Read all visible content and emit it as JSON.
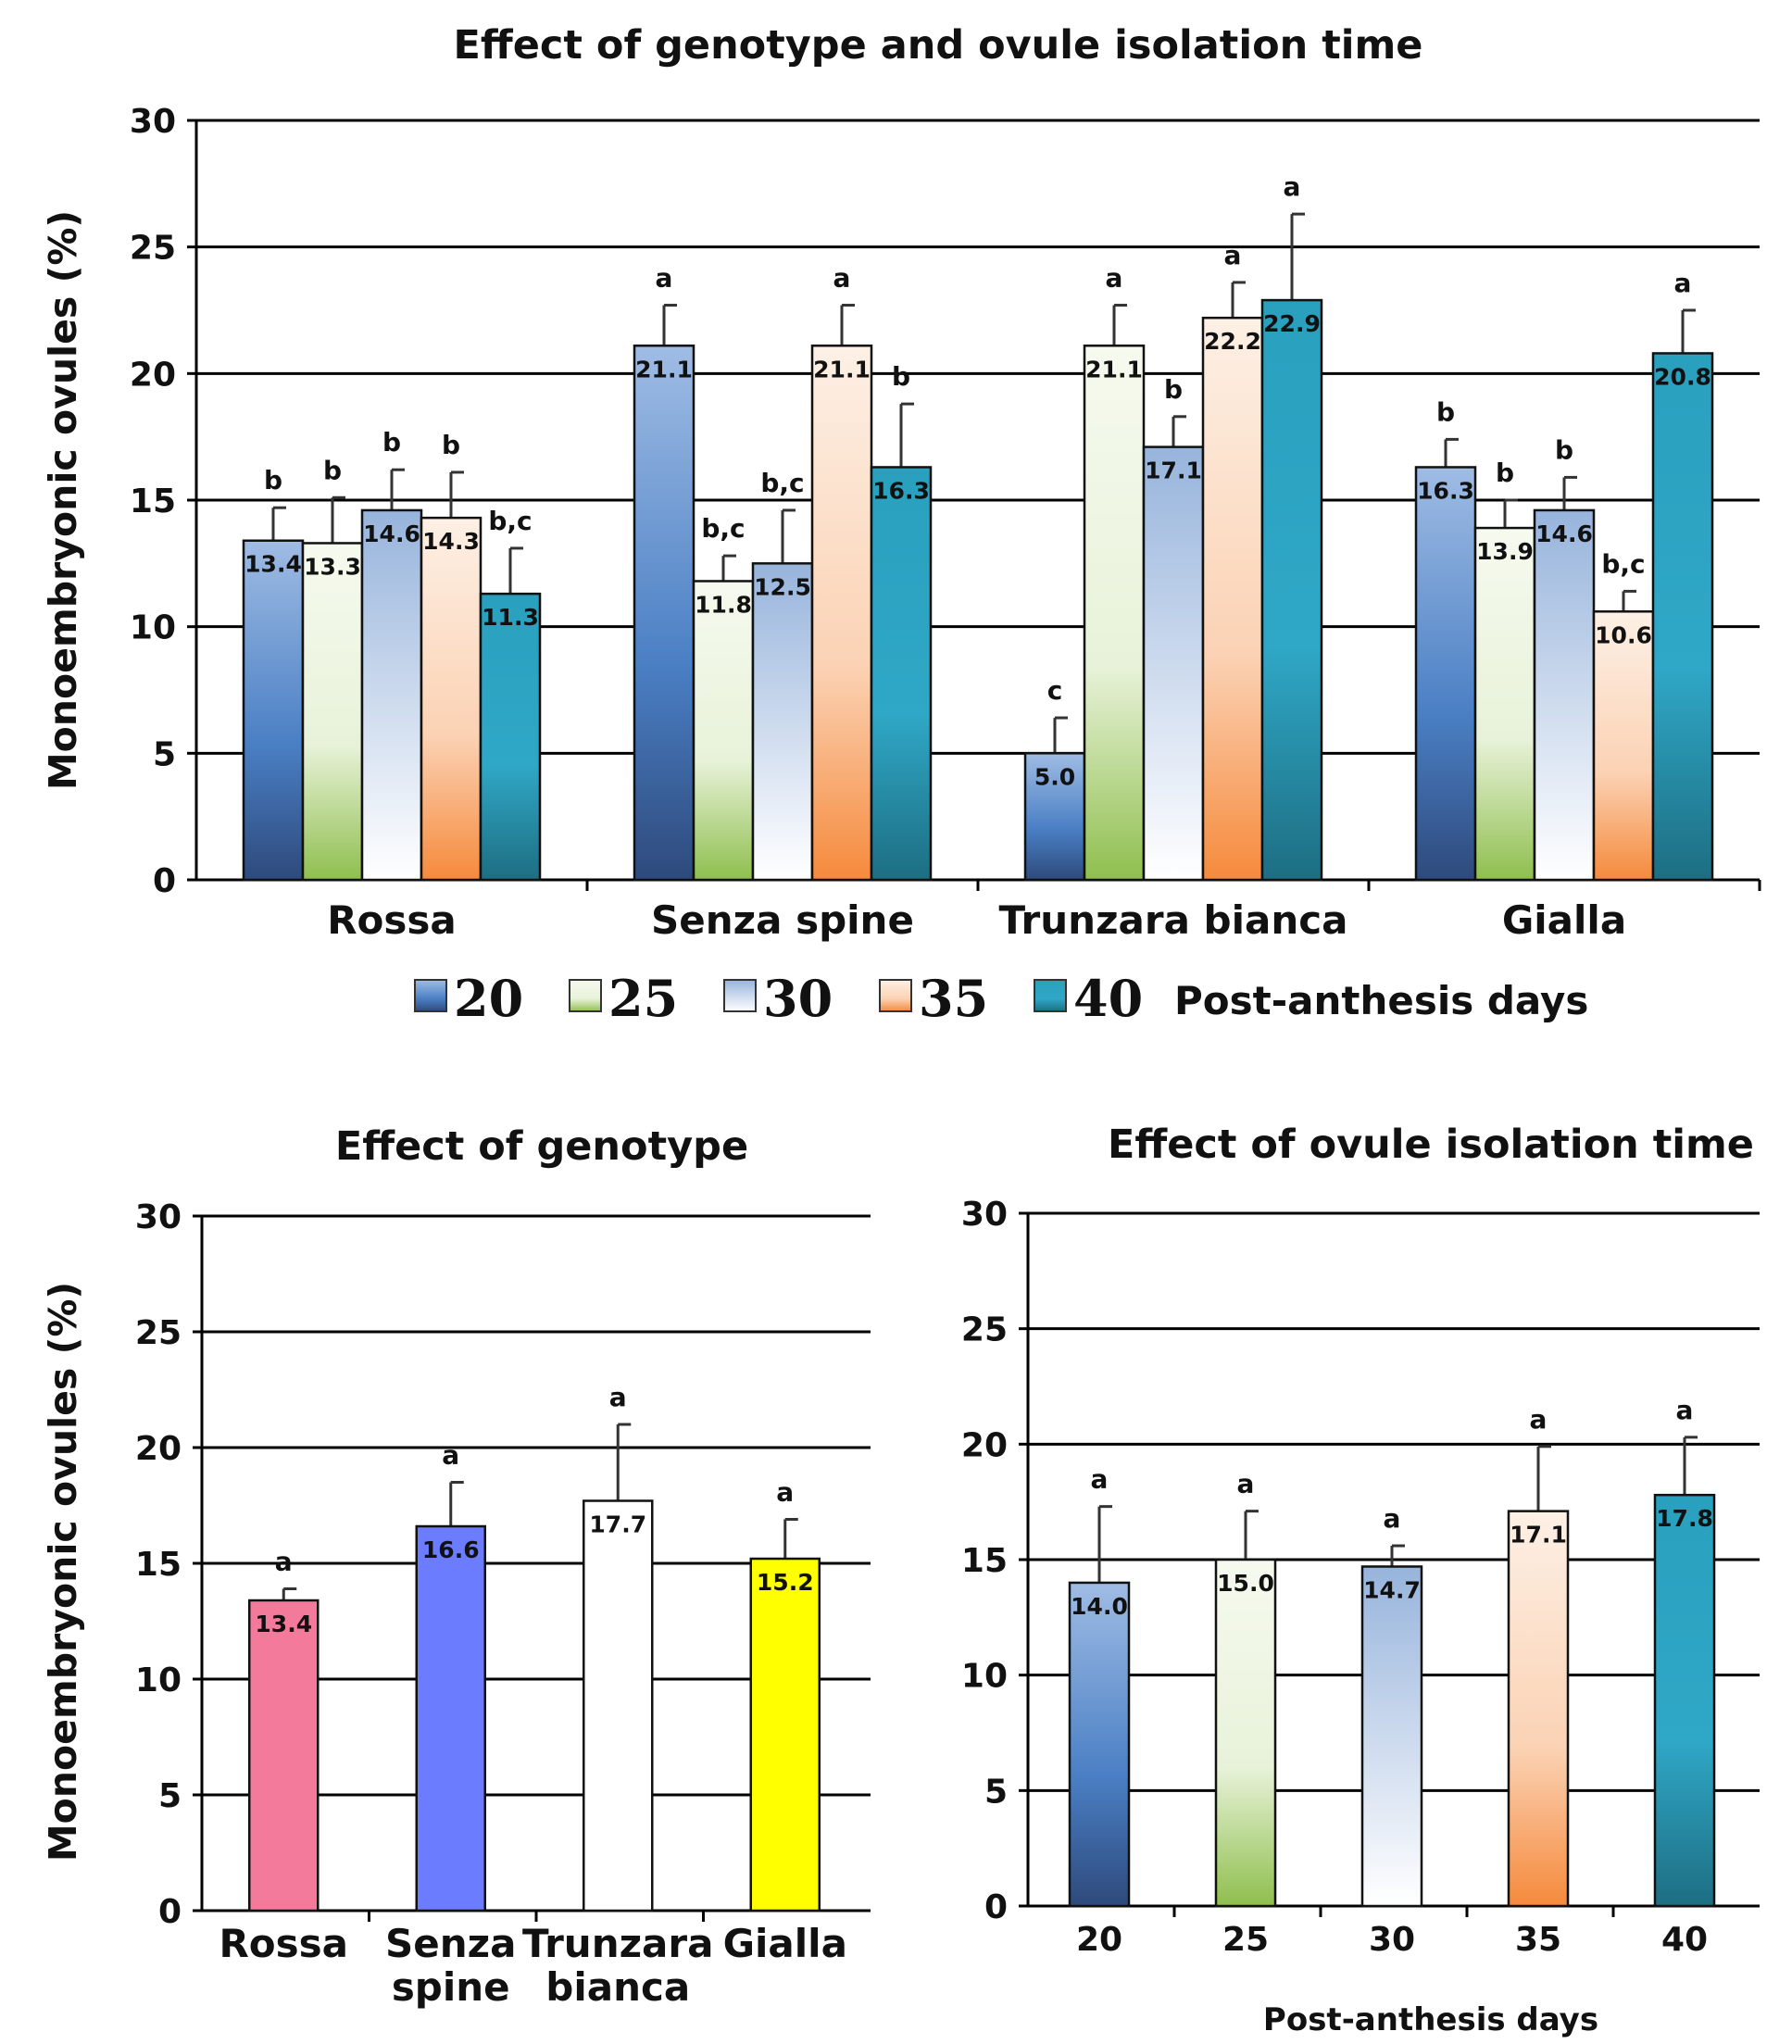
{
  "colors": {
    "d20": [
      "#2e4a7c",
      "#4a7fc4",
      "#9fbce4"
    ],
    "d25": [
      "#8fbf4e",
      "#e8f2d9",
      "#f6faef"
    ],
    "d30": [
      "#ffffff",
      "#d6e1f1",
      "#97b4dc"
    ],
    "d35": [
      "#f58a3c",
      "#fbd2b4",
      "#fdf0e5"
    ],
    "d40": [
      "#1d6e82",
      "#2fa7c6",
      "#29a0be"
    ],
    "rossa": "#f47a9b",
    "senza": "#6b7cff",
    "trunzara": "#ffffff",
    "gialla": "#ffff00",
    "edge": "#111111",
    "grid": "#000000"
  },
  "legend": {
    "items": [
      {
        "label": "20",
        "color": "d20"
      },
      {
        "label": "25",
        "color": "d25"
      },
      {
        "label": "30",
        "color": "d30"
      },
      {
        "label": "35",
        "color": "d35"
      },
      {
        "label": "40",
        "color": "d40"
      }
    ],
    "suffix": "Post-anthesis days"
  },
  "chart_data": [
    {
      "type": "bar",
      "title": "Effect of genotype and ovule isolation time",
      "ylabel": "Monoembryonic ovules (%)",
      "xlabel": "",
      "ylim": [
        0,
        30
      ],
      "yticks": [
        0,
        5,
        10,
        15,
        20,
        25,
        30
      ],
      "grid": true,
      "legend_position": "bottom",
      "categories": [
        "Rossa",
        "Senza spine",
        "Trunzara bianca",
        "Gialla"
      ],
      "series": [
        {
          "name": "20",
          "color": "d20",
          "values": [
            13.4,
            21.1,
            5.0,
            16.3
          ],
          "errors": [
            1.3,
            1.6,
            1.4,
            1.1
          ],
          "labels": [
            "13.4",
            "21.1",
            "5.0",
            "16.3"
          ],
          "letters": [
            "b",
            "a",
            "c",
            "b"
          ]
        },
        {
          "name": "25",
          "color": "d25",
          "values": [
            13.3,
            11.8,
            21.1,
            13.9
          ],
          "errors": [
            1.8,
            1.0,
            1.6,
            1.1
          ],
          "labels": [
            "13.3",
            "11.8",
            "21.1",
            "13.9"
          ],
          "letters": [
            "b",
            "b,c",
            "a",
            "b"
          ]
        },
        {
          "name": "30",
          "color": "d30",
          "values": [
            14.6,
            12.5,
            17.1,
            14.6
          ],
          "errors": [
            1.6,
            2.1,
            1.2,
            1.3
          ],
          "labels": [
            "14.6",
            "12.5",
            "17.1",
            "14.6"
          ],
          "letters": [
            "b",
            "b,c",
            "b",
            "b"
          ]
        },
        {
          "name": "35",
          "color": "d35",
          "values": [
            14.3,
            21.1,
            22.2,
            10.6
          ],
          "errors": [
            1.8,
            1.6,
            1.4,
            0.8
          ],
          "labels": [
            "14.3",
            "21.1",
            "22.2",
            "10.6"
          ],
          "letters": [
            "b",
            "a",
            "a",
            "b,c"
          ]
        },
        {
          "name": "40",
          "color": "d40",
          "values": [
            11.3,
            16.3,
            22.9,
            20.8
          ],
          "errors": [
            1.8,
            2.5,
            3.4,
            1.7
          ],
          "labels": [
            "11.3",
            "16.3",
            "22.9",
            "20.8"
          ],
          "letters": [
            "b,c",
            "b",
            "a",
            "a"
          ]
        }
      ]
    },
    {
      "type": "bar",
      "title": "Effect of genotype",
      "ylabel": "Monoembryonic ovules (%)",
      "xlabel": "",
      "ylim": [
        0,
        30
      ],
      "yticks": [
        0,
        5,
        10,
        15,
        20,
        25,
        30
      ],
      "grid": true,
      "categories": [
        [
          "Rossa"
        ],
        [
          "Senza",
          "spine"
        ],
        [
          "Trunzara",
          "bianca"
        ],
        [
          "Gialla"
        ]
      ],
      "values": [
        13.4,
        16.6,
        17.7,
        15.2
      ],
      "errors": [
        0.5,
        1.9,
        3.3,
        1.7
      ],
      "labels": [
        "13.4",
        "16.6",
        "17.7",
        "15.2"
      ],
      "letters": [
        "a",
        "a",
        "a",
        "a"
      ],
      "colors": [
        "rossa",
        "senza",
        "trunzara",
        "gialla"
      ]
    },
    {
      "type": "bar",
      "title": "Effect of ovule isolation time",
      "ylabel": "",
      "xlabel": "Post-anthesis days",
      "ylim": [
        0,
        30
      ],
      "yticks": [
        0,
        5,
        10,
        15,
        20,
        25,
        30
      ],
      "grid": true,
      "categories": [
        "20",
        "25",
        "30",
        "35",
        "40"
      ],
      "values": [
        14.0,
        15.0,
        14.7,
        17.1,
        17.8
      ],
      "errors": [
        3.3,
        2.1,
        0.9,
        2.8,
        2.5
      ],
      "labels": [
        "14.0",
        "15.0",
        "14.7",
        "17.1",
        "17.8"
      ],
      "letters": [
        "a",
        "a",
        "a",
        "a",
        "a"
      ],
      "colors": [
        "d20",
        "d25",
        "d30",
        "d35",
        "d40"
      ]
    }
  ]
}
